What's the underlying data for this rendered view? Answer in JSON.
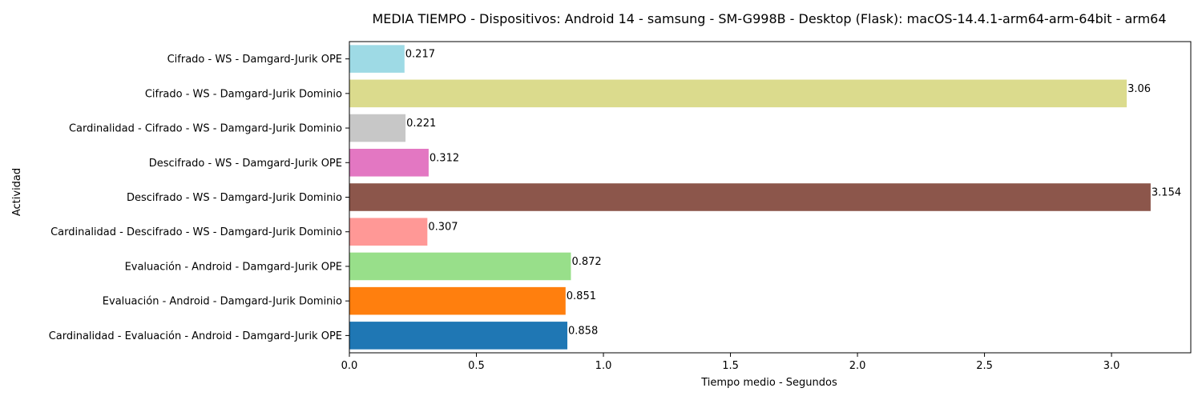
{
  "chart_data": {
    "type": "bar",
    "orientation": "horizontal",
    "title": "MEDIA TIEMPO - Dispositivos: Android 14 - samsung - SM-G998B - Desktop (Flask): macOS-14.4.1-arm64-arm-64bit - arm64",
    "xlabel": "Tiempo medio - Segundos",
    "ylabel": "Actividad",
    "xlim": [
      0,
      3.312
    ],
    "xticks": [
      "0.0",
      "0.5",
      "1.0",
      "1.5",
      "2.0",
      "2.5",
      "3.0"
    ],
    "grid": false,
    "legend": "none",
    "categories": [
      "Cifrado - WS - Damgard-Jurik OPE",
      "Cifrado - WS - Damgard-Jurik Dominio",
      "Cardinalidad - Cifrado - WS - Damgard-Jurik Dominio",
      "Descifrado - WS - Damgard-Jurik OPE",
      "Descifrado - WS - Damgard-Jurik Dominio",
      "Cardinalidad - Descifrado - WS - Damgard-Jurik Dominio",
      "Evaluación - Android - Damgard-Jurik OPE",
      "Evaluación - Android - Damgard-Jurik Dominio",
      "Cardinalidad - Evaluación - Android - Damgard-Jurik OPE"
    ],
    "values": [
      0.217,
      3.06,
      0.221,
      0.312,
      3.154,
      0.307,
      0.872,
      0.851,
      0.858
    ],
    "value_labels": [
      "0.217",
      "3.06",
      "0.221",
      "0.312",
      "3.154",
      "0.307",
      "0.872",
      "0.851",
      "0.858"
    ],
    "colors": [
      "#9edae5",
      "#dbdb8d",
      "#c7c7c7",
      "#e377c2",
      "#8c564b",
      "#ff9896",
      "#98df8a",
      "#ff7f0e",
      "#1f77b4"
    ]
  }
}
